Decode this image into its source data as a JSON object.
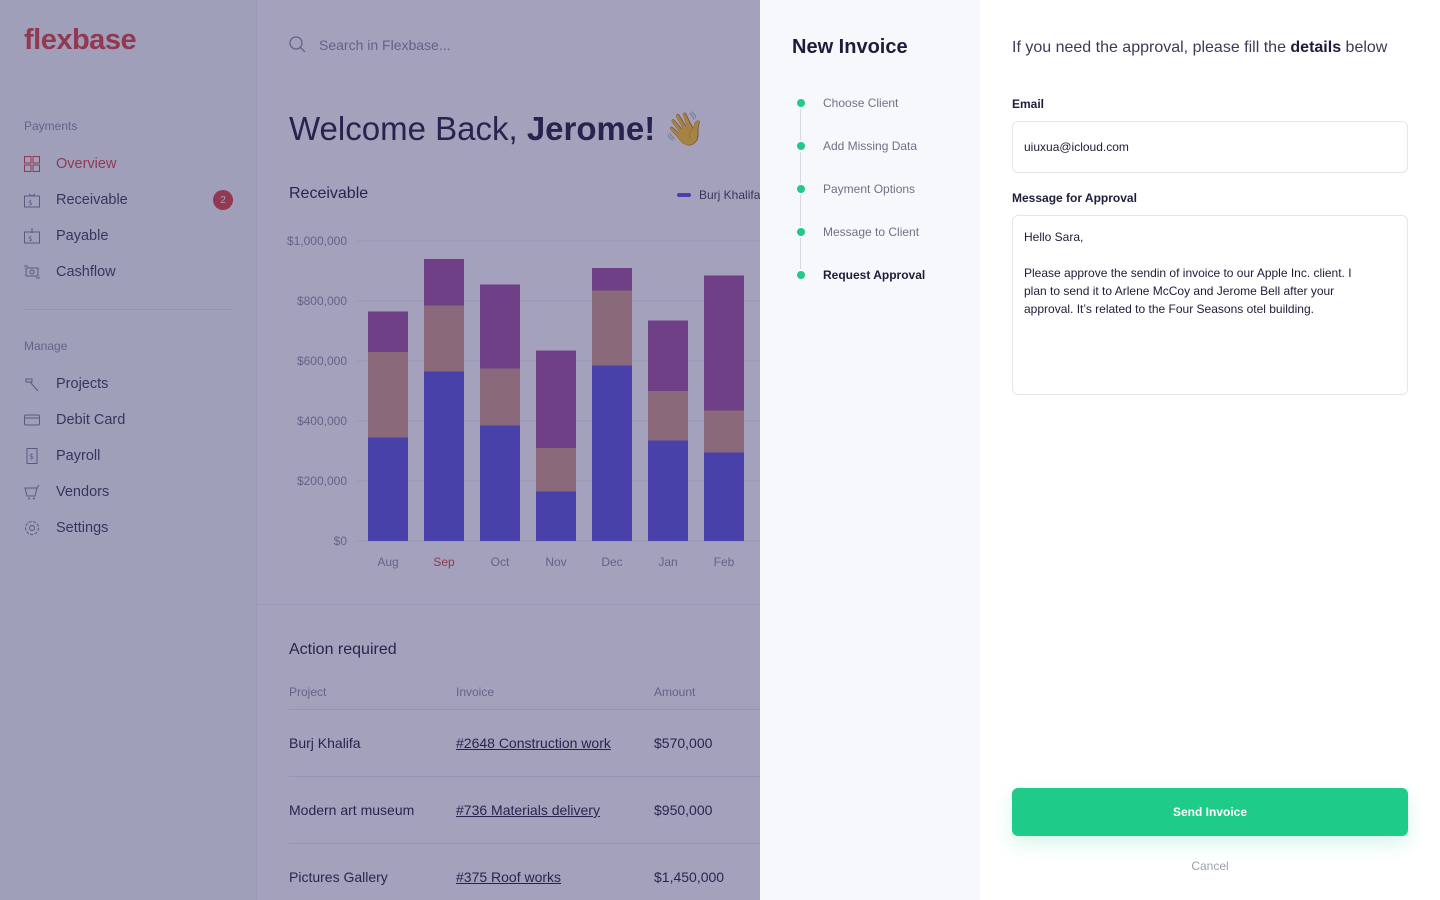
{
  "brand": {
    "logo": "flexbase",
    "accent": "#e0413f",
    "success": "#1fcb88"
  },
  "sidebar": {
    "payments_heading": "Payments",
    "manage_heading": "Manage",
    "payments": [
      {
        "label": "Overview",
        "icon": "grid-icon",
        "active": true
      },
      {
        "label": "Receivable",
        "icon": "receivable-icon",
        "badge": "2"
      },
      {
        "label": "Payable",
        "icon": "payable-icon"
      },
      {
        "label": "Cashflow",
        "icon": "cashflow-icon"
      }
    ],
    "manage": [
      {
        "label": "Projects",
        "icon": "hammer-icon"
      },
      {
        "label": "Debit Card",
        "icon": "card-icon"
      },
      {
        "label": "Payroll",
        "icon": "payroll-icon"
      },
      {
        "label": "Vendors",
        "icon": "vendors-icon"
      },
      {
        "label": "Settings",
        "icon": "gear-icon"
      }
    ]
  },
  "search": {
    "placeholder": "Search in Flexbase..."
  },
  "welcome": {
    "prefix": "Welcome Back, ",
    "name": "Jerome!",
    "emoji": "👋"
  },
  "receivable": {
    "title": "Receivable",
    "legend_first": "Burj Khalifa"
  },
  "chart_data": {
    "type": "bar",
    "stacked": true,
    "title": "Receivable",
    "categories": [
      "Aug",
      "Sep",
      "Oct",
      "Nov",
      "Dec",
      "Jan",
      "Feb"
    ],
    "highlighted_category": "Sep",
    "series": [
      {
        "name": "Burj Khalifa",
        "color": "#5a51e0",
        "values": [
          345000,
          565000,
          385000,
          165000,
          585000,
          335000,
          295000
        ]
      },
      {
        "color": "#d29a8a",
        "values": [
          285000,
          220000,
          190000,
          145000,
          250000,
          165000,
          140000
        ]
      },
      {
        "color": "#a04f9f",
        "values": [
          135000,
          155000,
          280000,
          325000,
          75000,
          235000,
          450000
        ]
      }
    ],
    "yticks": [
      "$0",
      "$200,000",
      "$400,000",
      "$600,000",
      "$800,000",
      "$1,000,000"
    ],
    "ylim": [
      0,
      1000000
    ],
    "grid": true,
    "legend": "top-right"
  },
  "action_required": {
    "title": "Action required",
    "headers": [
      "Project",
      "Invoice",
      "Amount"
    ],
    "rows": [
      {
        "project": "Burj Khalifa",
        "invoice": "#2648 Construction work",
        "amount": "$570,000"
      },
      {
        "project": "Modern art museum",
        "invoice": "#736 Materials delivery",
        "amount": "$950,000"
      },
      {
        "project": "Pictures Gallery",
        "invoice": "#375 Roof works",
        "amount": "$1,450,000"
      }
    ]
  },
  "drawer": {
    "title": "New Invoice",
    "steps": [
      {
        "label": "Choose Client"
      },
      {
        "label": "Add Missing Data"
      },
      {
        "label": "Payment Options"
      },
      {
        "label": "Message to Client"
      },
      {
        "label": "Request Approval",
        "current": true
      }
    ],
    "intro_prefix": "If you need the approval, please fill the ",
    "intro_bold": "details",
    "intro_suffix": " below",
    "email_label": "Email",
    "email_value": "uiuxua@icloud.com",
    "message_label": "Message for Approval",
    "message_value": "Hello Sara,\n\nPlease approve the sendin of invoice to our Apple Inc. client. I plan to send it to Arlene McCoy and Jerome Bell after your approval. It’s related to the Four Seasons otel building.",
    "send_label": "Send Invoice",
    "cancel_label": "Cancel"
  }
}
